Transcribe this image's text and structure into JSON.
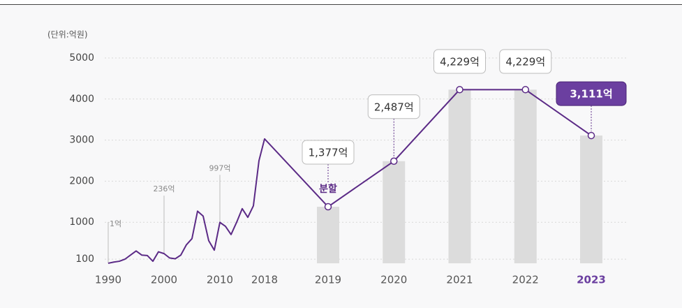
{
  "chart_data": {
    "type": "line",
    "unit_label": "(단위:억원)",
    "x": [
      1990,
      1991,
      1992,
      1993,
      1994,
      1995,
      1996,
      1997,
      1998,
      1999,
      2000,
      2001,
      2002,
      2003,
      2004,
      2005,
      2006,
      2007,
      2008,
      2009,
      2010,
      2011,
      2012,
      2013,
      2014,
      2015,
      2016,
      2017,
      2018,
      2019,
      2020,
      2021,
      2022,
      2023
    ],
    "series": [
      {
        "color": "#5b2a86",
        "values": [
          1,
          30,
          50,
          100,
          200,
          300,
          200,
          190,
          50,
          280,
          236,
          130,
          110,
          200,
          450,
          600,
          1270,
          1150,
          550,
          320,
          997,
          900,
          700,
          1000,
          1330,
          1120,
          1400,
          2500,
          3030,
          1377,
          2487,
          4229,
          4229,
          3111
        ],
        "value_labels": [
          "1억",
          null,
          null,
          null,
          null,
          null,
          null,
          null,
          null,
          null,
          "236억",
          null,
          null,
          null,
          null,
          null,
          null,
          null,
          null,
          null,
          "997억",
          null,
          null,
          null,
          null,
          null,
          null,
          null,
          null,
          "1,377억",
          "2,487억",
          "4,229억",
          "4,229억",
          "3,111억"
        ]
      }
    ],
    "bars": {
      "color": "#dcdcdc",
      "x": [
        2019,
        2020,
        2021,
        2022,
        2023
      ],
      "values": [
        1377,
        2487,
        4229,
        4229,
        3111
      ]
    },
    "annotations": [
      {
        "x": 2019,
        "text": "분할"
      }
    ],
    "ylim": [
      0,
      5000
    ],
    "yticks": [
      100,
      1000,
      2000,
      3000,
      4000,
      5000
    ],
    "xticks": [
      1990,
      2000,
      2010,
      2018,
      2019,
      2020,
      2021,
      2022,
      2023
    ],
    "highlight_x": 2023,
    "highlight_color": "#6b3fa0",
    "grid": true
  }
}
